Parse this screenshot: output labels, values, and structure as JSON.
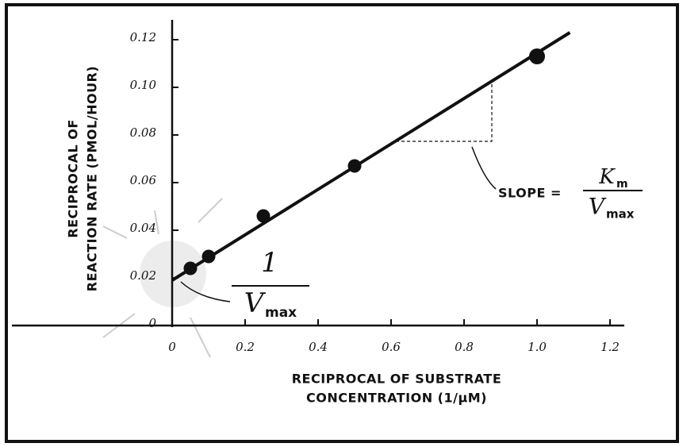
{
  "chart_data": {
    "type": "scatter",
    "x_title": [
      "RECIPROCAL OF SUBSTRATE",
      "CONCENTRATION (1/μM)"
    ],
    "y_title": [
      "RECIPROCAL OF",
      "REACTION RATE (PMOL/HOUR)"
    ],
    "x": [
      0.05,
      0.1,
      0.25,
      0.5,
      1.0
    ],
    "values": [
      0.024,
      0.029,
      0.046,
      0.067,
      0.113
    ],
    "color": "#111111",
    "fit": {
      "x": [
        0,
        1.09
      ],
      "values": [
        0.019,
        0.123
      ]
    },
    "xlim": [
      0,
      1.2
    ],
    "ylim": [
      0,
      0.12
    ],
    "xticks": [
      0,
      0.2,
      0.4,
      0.6,
      0.8,
      {
        "value": 1,
        "label": "1.0"
      },
      1.2
    ],
    "yticks": [
      0,
      0.02,
      0.04,
      0.06,
      0.08,
      {
        "value": 0.1,
        "label": "0.10"
      },
      0.12
    ],
    "annotations": {
      "intercept": {
        "numerator": "1",
        "denominator": "V",
        "denominator_sub": "max"
      },
      "slope": {
        "lead": "SLOPE =",
        "numerator": "K",
        "numerator_sub": "m",
        "denominator": "V",
        "denominator_sub": "max"
      }
    }
  }
}
